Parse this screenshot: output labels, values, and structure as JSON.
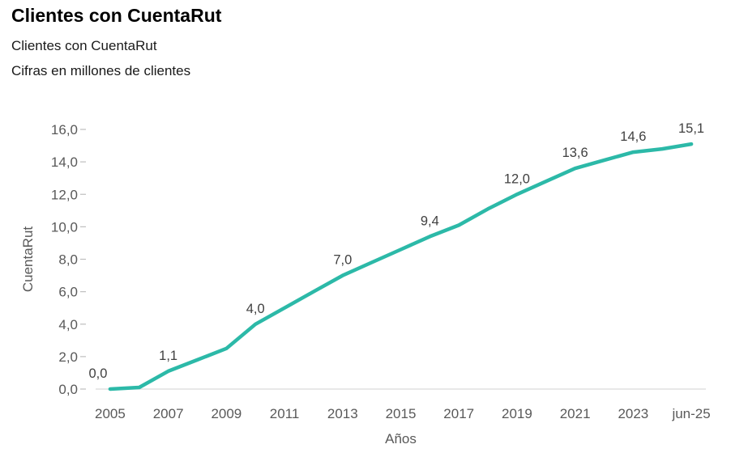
{
  "page": {
    "title": "Clientes con CuentaRut",
    "subtitle": "Clientes con CuentaRut",
    "caption": "Cifras en millones de clientes"
  },
  "chart_data": {
    "type": "line",
    "title": "Clientes con CuentaRut",
    "subtitle": "Cifras en millones de clientes",
    "xlabel": "Años",
    "ylabel": "CuentaRut",
    "ylim": [
      0,
      16
    ],
    "ytick_step": 2,
    "ytick_labels": [
      "0,0",
      "2,0",
      "4,0",
      "6,0",
      "8,0",
      "10,0",
      "12,0",
      "14,0",
      "16,0"
    ],
    "xtick_labels": [
      "2005",
      "2007",
      "2009",
      "2011",
      "2013",
      "2015",
      "2017",
      "2019",
      "2021",
      "2023",
      "jun-25"
    ],
    "categories": [
      "2005",
      "2006",
      "2007",
      "2008",
      "2009",
      "2010",
      "2011",
      "2012",
      "2013",
      "2014",
      "2015",
      "2016",
      "2017",
      "2018",
      "2019",
      "2020",
      "2021",
      "2022",
      "2023",
      "2024",
      "jun-25"
    ],
    "series": [
      {
        "name": "CuentaRut",
        "color": "#2cb9a8",
        "values": [
          0.0,
          0.1,
          1.1,
          1.8,
          2.5,
          4.0,
          5.0,
          6.0,
          7.0,
          7.8,
          8.6,
          9.4,
          10.1,
          11.1,
          12.0,
          12.8,
          13.6,
          14.1,
          14.6,
          14.8,
          15.1
        ],
        "point_labels": [
          "0,0",
          null,
          "1,1",
          null,
          null,
          "4,0",
          null,
          null,
          "7,0",
          null,
          null,
          "9,4",
          null,
          null,
          "12,0",
          null,
          "13,6",
          null,
          "14,6",
          null,
          "15,1"
        ]
      }
    ],
    "decimal_separator": ",",
    "grid": "baseline-only",
    "legend": "none",
    "colors": {
      "line": "#2cb9a8",
      "axis_line": "#d9d9d9",
      "tick_mark": "#bfbfbf",
      "tick_text": "#595959",
      "axis_title_text": "#595959",
      "data_label_text": "#404040"
    }
  }
}
